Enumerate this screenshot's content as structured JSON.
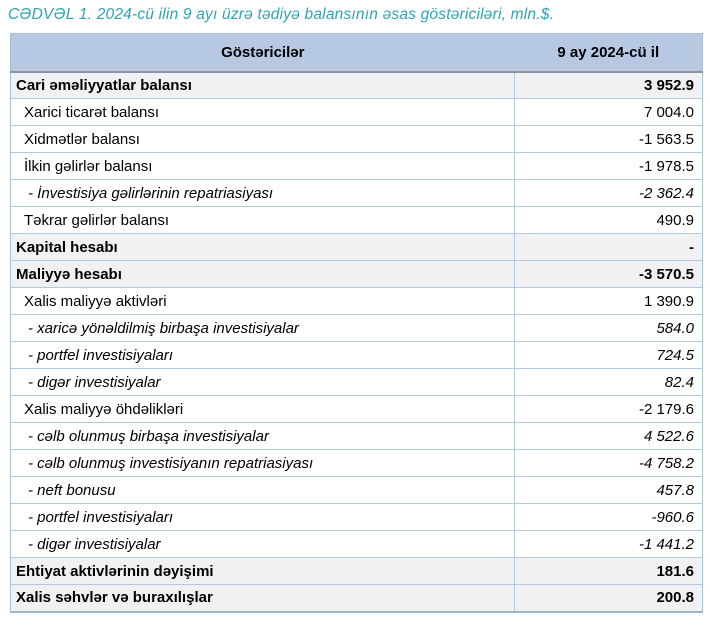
{
  "title": "CƏDVƏL 1. 2024-cü ilin 9 ayı üzrə tədiyə balansının əsas göstəriciləri, mln.$.",
  "colors": {
    "title_teal": "#2fa3b2",
    "header_bg": "#b7c9e2",
    "total_row_bg": "#f0f1f2",
    "grid_border": "#b3cade",
    "header_bottom_border": "#8893a3",
    "text": "#000000"
  },
  "table": {
    "columns": [
      {
        "label": "Göstəricilər"
      },
      {
        "label": "9 ay 2024-cü il"
      }
    ],
    "rows": [
      {
        "label": "Cari əməliyyatlar balansı",
        "value": "3 952.9",
        "style": "total"
      },
      {
        "label": "Xarici ticarət balansı",
        "value": "7 004.0",
        "style": "item"
      },
      {
        "label": "Xidmətlər balansı",
        "value": "-1 563.5",
        "style": "item"
      },
      {
        "label": "İlkin gəlirlər balansı",
        "value": "-1 978.5",
        "style": "item"
      },
      {
        "label": "- İnvestisiya gəlirlərinin repatriasiyası",
        "value": "-2 362.4",
        "style": "sub"
      },
      {
        "label": "Təkrar gəlirlər balansı",
        "value": "490.9",
        "style": "item"
      },
      {
        "label": "Kapital hesabı",
        "value": "-",
        "style": "total"
      },
      {
        "label": "Maliyyə hesabı",
        "value": "-3 570.5",
        "style": "total"
      },
      {
        "label": "Xalis maliyyə aktivləri",
        "value": "1 390.9",
        "style": "item"
      },
      {
        "label": "- xaricə yönəldilmiş birbaşa investisiyalar",
        "value": "584.0",
        "style": "sub"
      },
      {
        "label": "- portfel investisiyaları",
        "value": "724.5",
        "style": "sub"
      },
      {
        "label": "- digər investisiyalar",
        "value": "82.4",
        "style": "sub"
      },
      {
        "label": "Xalis maliyyə öhdəlikləri",
        "value": "-2 179.6",
        "style": "item"
      },
      {
        "label": "- cəlb olunmuş birbaşa investisiyalar",
        "value": "4 522.6",
        "style": "sub"
      },
      {
        "label": "- cəlb olunmuş investisiyanın repatriasiyası",
        "value": "-4 758.2",
        "style": "sub"
      },
      {
        "label": "- neft bonusu",
        "value": "457.8",
        "style": "sub"
      },
      {
        "label": "- portfel investisiyaları",
        "value": "-960.6",
        "style": "sub"
      },
      {
        "label": "- digər investisiyalar",
        "value": "-1 441.2",
        "style": "sub"
      },
      {
        "label": "Ehtiyat aktivlərinin dəyişimi",
        "value": "181.6",
        "style": "total"
      },
      {
        "label": "Xalis səhvlər və buraxılışlar",
        "value": "200.8",
        "style": "total"
      }
    ]
  }
}
